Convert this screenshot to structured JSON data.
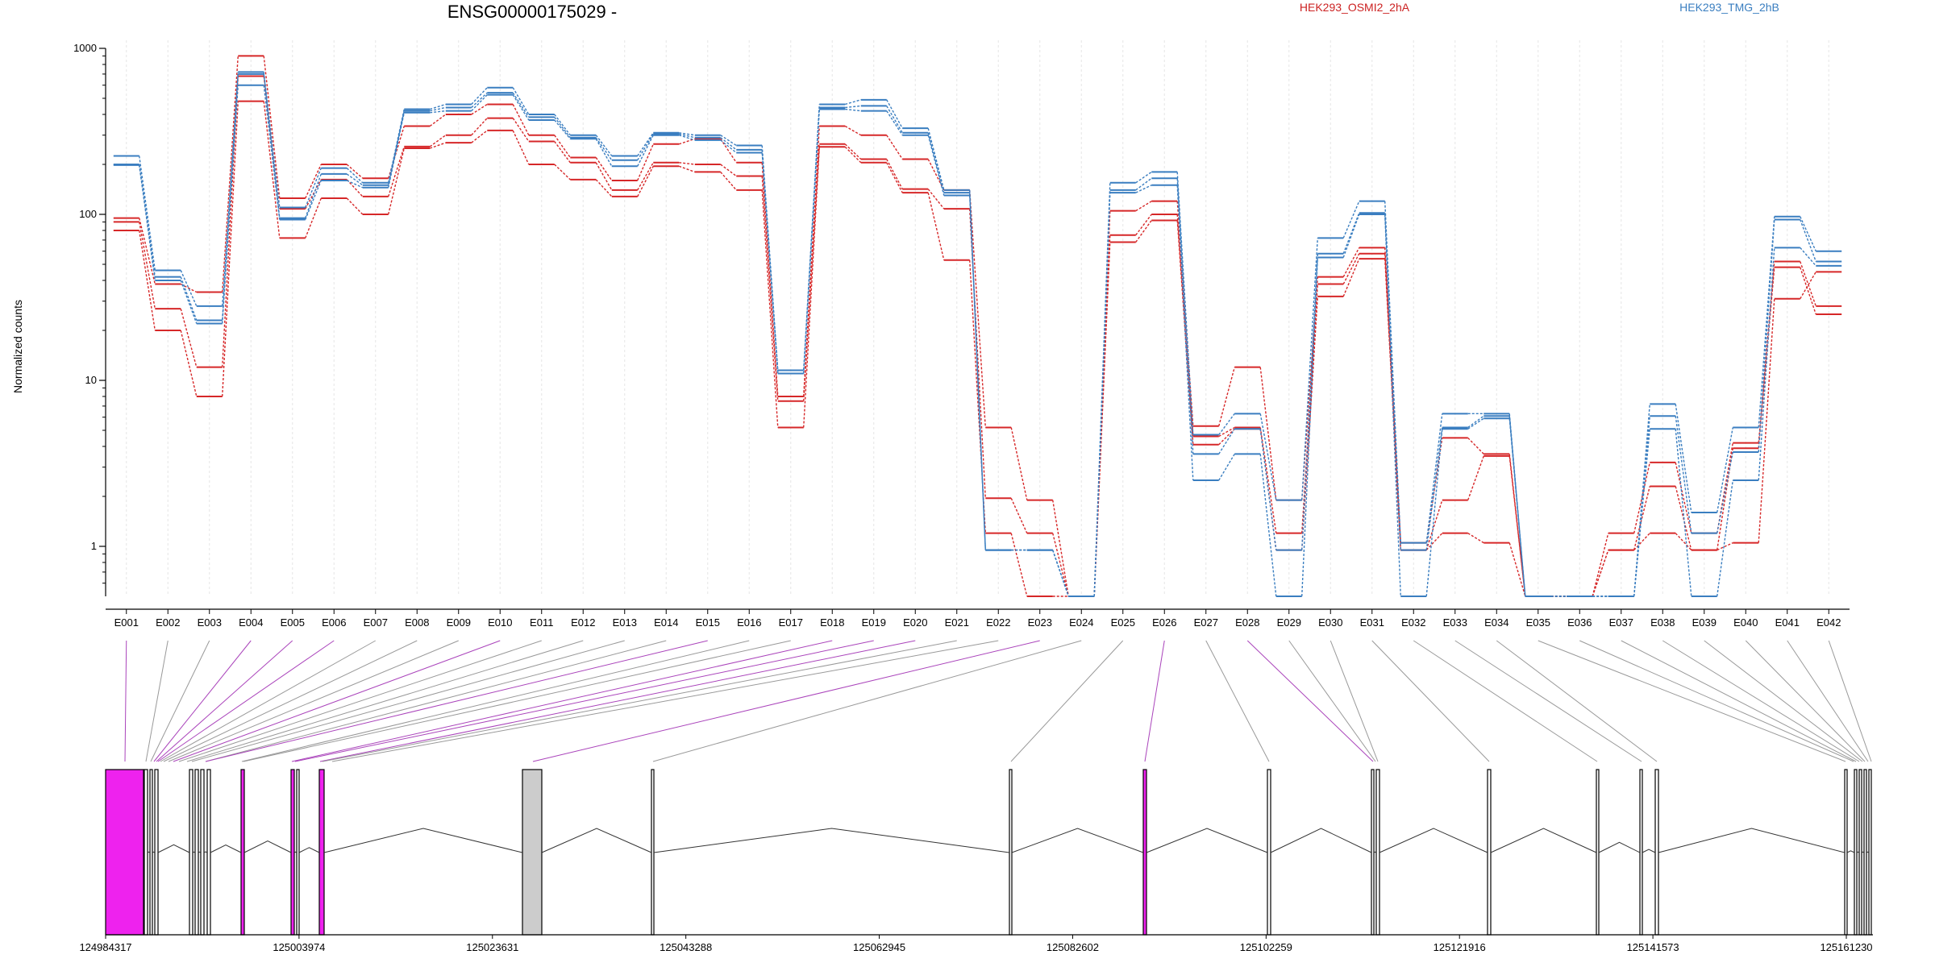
{
  "chart_data": {
    "type": "line",
    "title": "ENSG00000175029 -",
    "ylabel": "Normalized counts",
    "yscale": "log",
    "ylim": [
      0.5,
      1000
    ],
    "yticks": [
      "1000",
      "100",
      "10",
      "1"
    ],
    "categories": [
      "E001",
      "E002",
      "E003",
      "E004",
      "E005",
      "E006",
      "E007",
      "E008",
      "E009",
      "E010",
      "E011",
      "E012",
      "E013",
      "E014",
      "E015",
      "E016",
      "E017",
      "E018",
      "E019",
      "E020",
      "E021",
      "E022",
      "E023",
      "E024",
      "E025",
      "E026",
      "E027",
      "E028",
      "E029",
      "E030",
      "E031",
      "E032",
      "E033",
      "E034",
      "E035",
      "E036",
      "E037",
      "E038",
      "E039",
      "E040",
      "E041",
      "E042"
    ],
    "legend": [
      "HEK293_OSMI2_2hA",
      "HEK293_TMG_2hB"
    ],
    "colors": {
      "OSMI2": "#d62728",
      "TMG": "#3a7ec0",
      "grid": "#e6e6e6",
      "exon_fill": "#ee22ee",
      "exon_grey": "#cccccc",
      "link_grey": "#999999",
      "link_purple": "#aa44bb"
    },
    "series": [
      {
        "group": "HEK293_OSMI2_2hA",
        "values": [
          95,
          38,
          34,
          900,
          125,
          200,
          165,
          340,
          400,
          460,
          300,
          220,
          160,
          265,
          285,
          205,
          8,
          340,
          300,
          215,
          140,
          5.2,
          1.9,
          0.5,
          105,
          120,
          5.3,
          12,
          1.9,
          42,
          63,
          1.05,
          4.5,
          3.6,
          0.5,
          0.5,
          1.2,
          3.2,
          1.2,
          4.2,
          52,
          28
        ]
      },
      {
        "group": "HEK293_OSMI2_2hA",
        "values": [
          90,
          27,
          12,
          680,
          108,
          162,
          128,
          256,
          300,
          380,
          275,
          205,
          140,
          205,
          200,
          170,
          7.5,
          265,
          215,
          142,
          108,
          1.95,
          1.2,
          0.5,
          75,
          100,
          4.6,
          5.2,
          1.2,
          38,
          58,
          0.95,
          1.9,
          3.5,
          0.5,
          0.5,
          0.95,
          2.3,
          0.95,
          3.9,
          48,
          25
        ]
      },
      {
        "group": "HEK293_OSMI2_2hA",
        "values": [
          80,
          20,
          8,
          480,
          72,
          125,
          100,
          250,
          270,
          320,
          200,
          162,
          128,
          195,
          180,
          140,
          5.2,
          255,
          205,
          135,
          53,
          1.2,
          0.5,
          0.5,
          68,
          92,
          4.1,
          5.1,
          0.95,
          32,
          54,
          0.95,
          1.2,
          1.05,
          0.5,
          0.5,
          0.95,
          1.2,
          0.95,
          1.05,
          31,
          45
        ]
      },
      {
        "group": "HEK293_TMG_2hB",
        "values": [
          225,
          46,
          28,
          720,
          110,
          190,
          155,
          430,
          460,
          580,
          400,
          300,
          225,
          310,
          300,
          260,
          11.5,
          460,
          490,
          330,
          140,
          0.95,
          0.95,
          0.5,
          155,
          180,
          4.7,
          6.3,
          1.9,
          72,
          120,
          1.05,
          6.3,
          6.3,
          0.5,
          0.5,
          0.5,
          7.2,
          1.6,
          5.2,
          97,
          60
        ]
      },
      {
        "group": "HEK293_TMG_2hB",
        "values": [
          200,
          42,
          23,
          700,
          95,
          175,
          150,
          420,
          440,
          540,
          385,
          290,
          212,
          305,
          290,
          245,
          11,
          440,
          450,
          310,
          135,
          0.95,
          0.95,
          0.5,
          140,
          165,
          3.6,
          5.1,
          0.95,
          58,
          102,
          0.95,
          5.2,
          6.1,
          0.5,
          0.5,
          0.5,
          6.1,
          1.2,
          3.7,
          93,
          52
        ]
      },
      {
        "group": "HEK293_TMG_2hB",
        "values": [
          198,
          40,
          22,
          600,
          93,
          160,
          145,
          410,
          420,
          525,
          370,
          285,
          195,
          300,
          280,
          235,
          11,
          430,
          420,
          300,
          130,
          0.95,
          0.95,
          0.5,
          135,
          150,
          2.5,
          3.6,
          0.5,
          55,
          100,
          0.5,
          5.1,
          5.9,
          0.5,
          0.5,
          0.5,
          5.1,
          0.5,
          2.5,
          63,
          49
        ]
      }
    ],
    "gene_model": {
      "coord_ticks": [
        "124984317",
        "125003974",
        "125023631",
        "125043288",
        "125062945",
        "125082602",
        "125102259",
        "125121916",
        "125141573",
        "125161230"
      ]
    }
  }
}
